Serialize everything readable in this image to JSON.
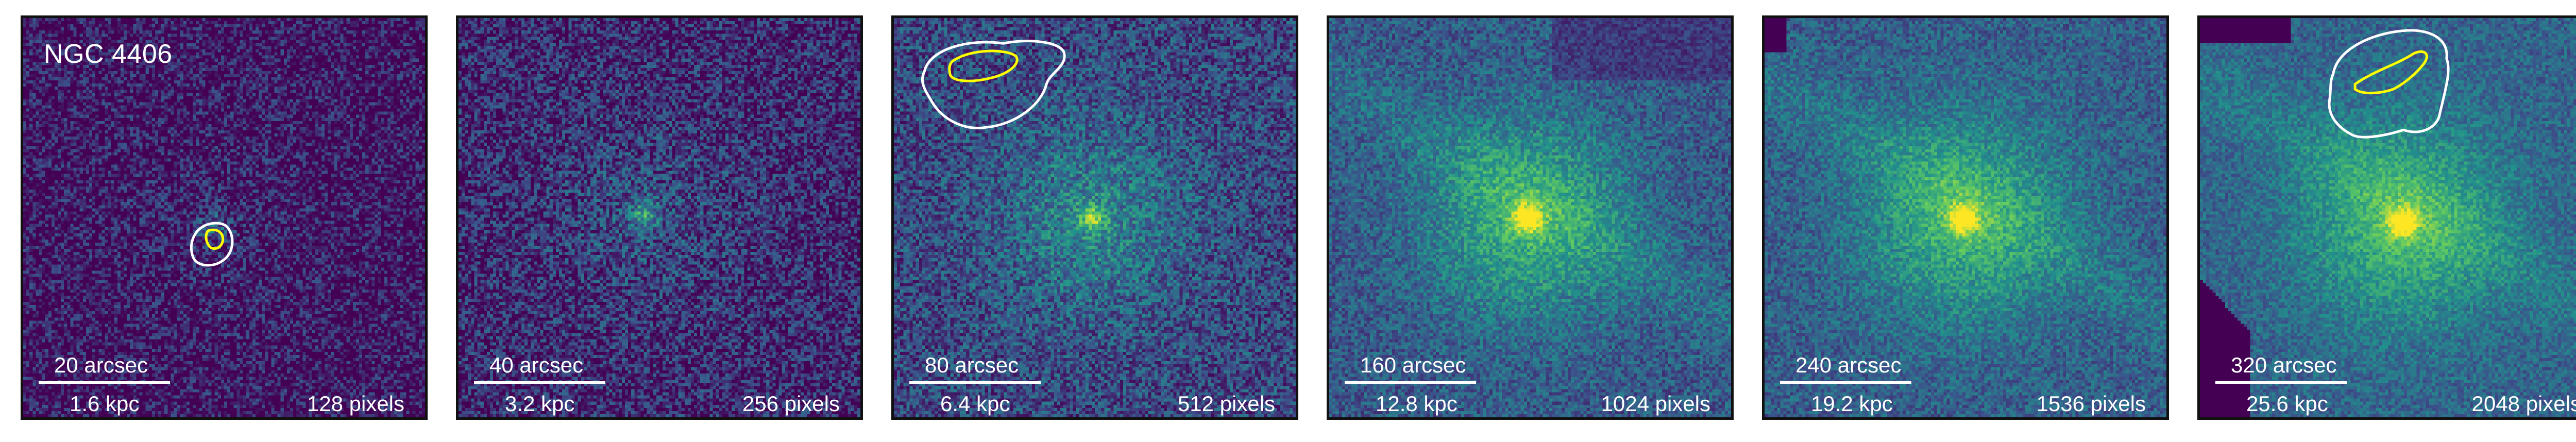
{
  "figure": {
    "galaxy_name": "NGC 4406",
    "colormap": [
      "#440154",
      "#3b528b",
      "#21918c",
      "#5ec962",
      "#fde725"
    ],
    "contour_colors": {
      "outer": "#ffffff",
      "inner": "#ffff00"
    },
    "panels": [
      {
        "arcsec": "20 arcsec",
        "kpc": "1.6 kpc",
        "pixels": "128 pixels"
      },
      {
        "arcsec": "40 arcsec",
        "kpc": "3.2 kpc",
        "pixels": "256 pixels"
      },
      {
        "arcsec": "80 arcsec",
        "kpc": "6.4 kpc",
        "pixels": "512 pixels"
      },
      {
        "arcsec": "160 arcsec",
        "kpc": "12.8 kpc",
        "pixels": "1024 pixels"
      },
      {
        "arcsec": "240 arcsec",
        "kpc": "19.2 kpc",
        "pixels": "1536 pixels"
      },
      {
        "arcsec": "320 arcsec",
        "kpc": "25.6 kpc",
        "pixels": "2048 pixels"
      }
    ]
  }
}
